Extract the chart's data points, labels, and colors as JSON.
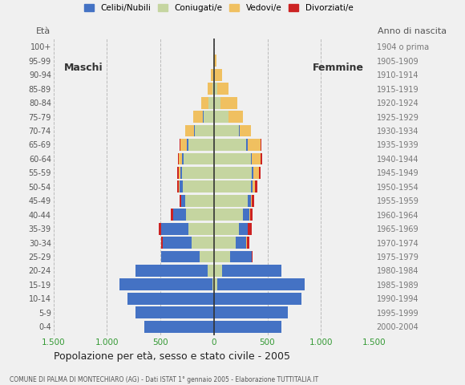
{
  "age_groups": [
    "0-4",
    "5-9",
    "10-14",
    "15-19",
    "20-24",
    "25-29",
    "30-34",
    "35-39",
    "40-44",
    "45-49",
    "50-54",
    "55-59",
    "60-64",
    "65-69",
    "70-74",
    "75-79",
    "80-84",
    "85-89",
    "90-94",
    "95-99",
    "100+"
  ],
  "birth_years": [
    "2000-2004",
    "1995-1999",
    "1990-1994",
    "1985-1989",
    "1980-1984",
    "1975-1979",
    "1970-1974",
    "1965-1969",
    "1960-1964",
    "1955-1959",
    "1950-1954",
    "1945-1949",
    "1940-1944",
    "1935-1939",
    "1930-1934",
    "1925-1929",
    "1920-1924",
    "1915-1919",
    "1910-1914",
    "1905-1909",
    "1904 o prima"
  ],
  "males": {
    "celibe": [
      650,
      730,
      810,
      870,
      680,
      360,
      270,
      250,
      120,
      40,
      30,
      20,
      15,
      10,
      8,
      5,
      0,
      0,
      0,
      0,
      0
    ],
    "coniugato": [
      0,
      0,
      0,
      10,
      55,
      130,
      205,
      240,
      260,
      265,
      290,
      295,
      280,
      240,
      175,
      95,
      50,
      15,
      5,
      0,
      0
    ],
    "vedovo": [
      0,
      0,
      0,
      0,
      0,
      0,
      0,
      0,
      0,
      2,
      5,
      10,
      30,
      65,
      85,
      95,
      65,
      40,
      25,
      5,
      0
    ],
    "divorziato": [
      0,
      0,
      0,
      0,
      0,
      5,
      18,
      25,
      25,
      12,
      18,
      18,
      10,
      5,
      0,
      0,
      0,
      0,
      0,
      0,
      0
    ]
  },
  "females": {
    "nubile": [
      630,
      690,
      820,
      820,
      550,
      200,
      100,
      80,
      60,
      30,
      20,
      15,
      10,
      10,
      5,
      5,
      0,
      0,
      0,
      0,
      0
    ],
    "coniugata": [
      0,
      0,
      0,
      30,
      80,
      155,
      205,
      235,
      275,
      315,
      345,
      355,
      345,
      305,
      235,
      135,
      65,
      28,
      12,
      2,
      0
    ],
    "vedova": [
      0,
      0,
      0,
      0,
      0,
      0,
      5,
      5,
      7,
      12,
      22,
      52,
      82,
      125,
      105,
      135,
      155,
      105,
      65,
      22,
      5
    ],
    "divorziata": [
      0,
      0,
      0,
      0,
      0,
      5,
      18,
      32,
      22,
      18,
      18,
      18,
      12,
      5,
      2,
      0,
      0,
      0,
      0,
      0,
      0
    ]
  },
  "color_celibe": "#4472c4",
  "color_coniugato": "#c5d5a0",
  "color_vedovo": "#f0c060",
  "color_divorziato": "#cc2222",
  "xlim": 1500,
  "title": "Popolazione per età, sesso e stato civile - 2005",
  "subtitle": "COMUNE DI PALMA DI MONTECHIARO (AG) - Dati ISTAT 1° gennaio 2005 - Elaborazione TUTTITALIA.IT",
  "legend_labels": [
    "Celibi/Nubili",
    "Coniugati/e",
    "Vedovi/e",
    "Divorziati/e"
  ],
  "bg_color": "#f0f0f0",
  "bar_height": 0.85,
  "maschi_label": "Maschi",
  "femmine_label": "Femmine",
  "eta_label": "Età",
  "anno_label": "Anno di nascita"
}
